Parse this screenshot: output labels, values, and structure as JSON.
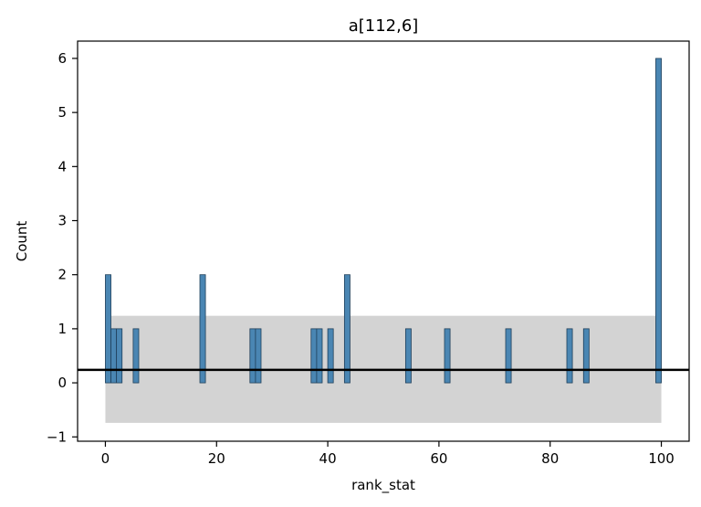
{
  "chart_data": {
    "type": "bar",
    "title": "a[112,6]",
    "xlabel": "rank_stat",
    "ylabel": "Count",
    "xlim": [
      -5,
      105
    ],
    "ylim": [
      -1.08,
      6.32
    ],
    "xticks": [
      0,
      20,
      40,
      60,
      80,
      100
    ],
    "yticks": [
      -1,
      0,
      1,
      2,
      3,
      4,
      5,
      6
    ],
    "bin_width": 1,
    "bins": [
      {
        "x": 0,
        "count": 2
      },
      {
        "x": 1,
        "count": 1
      },
      {
        "x": 2,
        "count": 1
      },
      {
        "x": 5,
        "count": 1
      },
      {
        "x": 17,
        "count": 2
      },
      {
        "x": 26,
        "count": 1
      },
      {
        "x": 27,
        "count": 1
      },
      {
        "x": 37,
        "count": 1
      },
      {
        "x": 38,
        "count": 1
      },
      {
        "x": 40,
        "count": 1
      },
      {
        "x": 43,
        "count": 2
      },
      {
        "x": 54,
        "count": 1
      },
      {
        "x": 61,
        "count": 1
      },
      {
        "x": 72,
        "count": 1
      },
      {
        "x": 83,
        "count": 1
      },
      {
        "x": 86,
        "count": 1
      },
      {
        "x": 99,
        "count": 6
      }
    ],
    "band": {
      "x0": 0,
      "x1": 100,
      "y0": -0.74,
      "y1": 1.24,
      "color": "#d3d3d3"
    },
    "hline": {
      "y": 0.24,
      "color": "#000000"
    },
    "bar_color": "#4a86b3",
    "bar_edge_color": "#1f3f5a",
    "grid": false,
    "legend": "none"
  }
}
